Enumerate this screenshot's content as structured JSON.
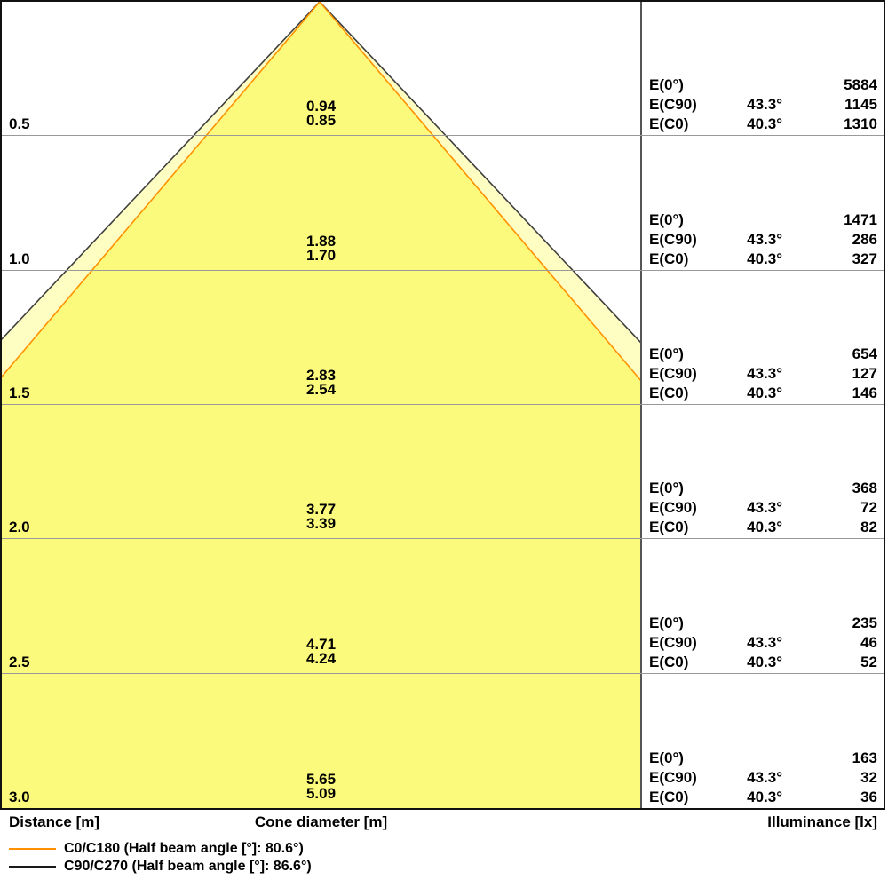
{
  "footer": {
    "distance_label": "Distance [m]",
    "cone_diameter_label": "Cone diameter [m]",
    "illuminance_label": "Illuminance [lx]"
  },
  "e_labels": {
    "e0": "E(0°)",
    "ec90": "E(C90)",
    "ec0": "E(C0)"
  },
  "rows": [
    {
      "distance": "0.5",
      "cone_c90": "0.94",
      "cone_c0": "0.85",
      "e0": "5884",
      "angle_c90": "43.3°",
      "e_c90": "1145",
      "angle_c0": "40.3°",
      "e_c0": "1310"
    },
    {
      "distance": "1.0",
      "cone_c90": "1.88",
      "cone_c0": "1.70",
      "e0": "1471",
      "angle_c90": "43.3°",
      "e_c90": "286",
      "angle_c0": "40.3°",
      "e_c0": "327"
    },
    {
      "distance": "1.5",
      "cone_c90": "2.83",
      "cone_c0": "2.54",
      "e0": "654",
      "angle_c90": "43.3°",
      "e_c90": "127",
      "angle_c0": "40.3°",
      "e_c0": "146"
    },
    {
      "distance": "2.0",
      "cone_c90": "3.77",
      "cone_c0": "3.39",
      "e0": "368",
      "angle_c90": "43.3°",
      "e_c90": "72",
      "angle_c0": "40.3°",
      "e_c0": "82"
    },
    {
      "distance": "2.5",
      "cone_c90": "4.71",
      "cone_c0": "4.24",
      "e0": "235",
      "angle_c90": "43.3°",
      "e_c90": "46",
      "angle_c0": "40.3°",
      "e_c0": "52"
    },
    {
      "distance": "3.0",
      "cone_c90": "5.65",
      "cone_c0": "5.09",
      "e0": "163",
      "angle_c90": "43.3°",
      "e_c90": "32",
      "angle_c0": "40.3°",
      "e_c0": "36"
    }
  ],
  "legend": [
    {
      "label": "C0/C180 (Half beam angle [°]: 80.6°)",
      "color": "#FF9100"
    },
    {
      "label": "C90/C270 (Half beam angle [°]: 86.6°)",
      "color": "#1a1a1a"
    }
  ],
  "colors": {
    "gridline": "#999999",
    "divider": "#555555",
    "border": "#111111",
    "inner_cone_fill": "#FCFA7D",
    "outer_cone_fill": "#FFFEC2",
    "inner_cone_stroke": "#FF9100",
    "outer_cone_stroke": "#3F3F3F"
  },
  "chart_data": {
    "type": "area",
    "subtype": "photometric-cone-diagram",
    "title": "",
    "xlabel": "Cone diameter [m]",
    "ylabel": "Distance [m]",
    "ylabel_right": "Illuminance [lx]",
    "distances_m": [
      0.5,
      1.0,
      1.5,
      2.0,
      2.5,
      3.0
    ],
    "axis_range_distance_m": [
      0,
      3.0
    ],
    "grid": true,
    "legend_position": "bottom-left",
    "series": [
      {
        "name": "C0/C180",
        "half_beam_angle_deg": 80.6,
        "half_angle_deg": 40.3,
        "cone_diameter_m": [
          0.85,
          1.7,
          2.54,
          3.39,
          4.24,
          5.09
        ],
        "illuminance_lx": [
          1310,
          327,
          146,
          82,
          52,
          36
        ],
        "stroke": "#FF9100",
        "fill": "#FCFA7D"
      },
      {
        "name": "C90/C270",
        "half_beam_angle_deg": 86.6,
        "half_angle_deg": 43.3,
        "cone_diameter_m": [
          0.94,
          1.88,
          2.83,
          3.77,
          4.71,
          5.65
        ],
        "illuminance_lx": [
          1145,
          286,
          127,
          72,
          46,
          32
        ],
        "stroke": "#3F3F3F",
        "fill": "#FFFEC2"
      }
    ],
    "on_axis_illuminance_E0_lx": [
      5884,
      1471,
      654,
      368,
      235,
      163
    ]
  }
}
